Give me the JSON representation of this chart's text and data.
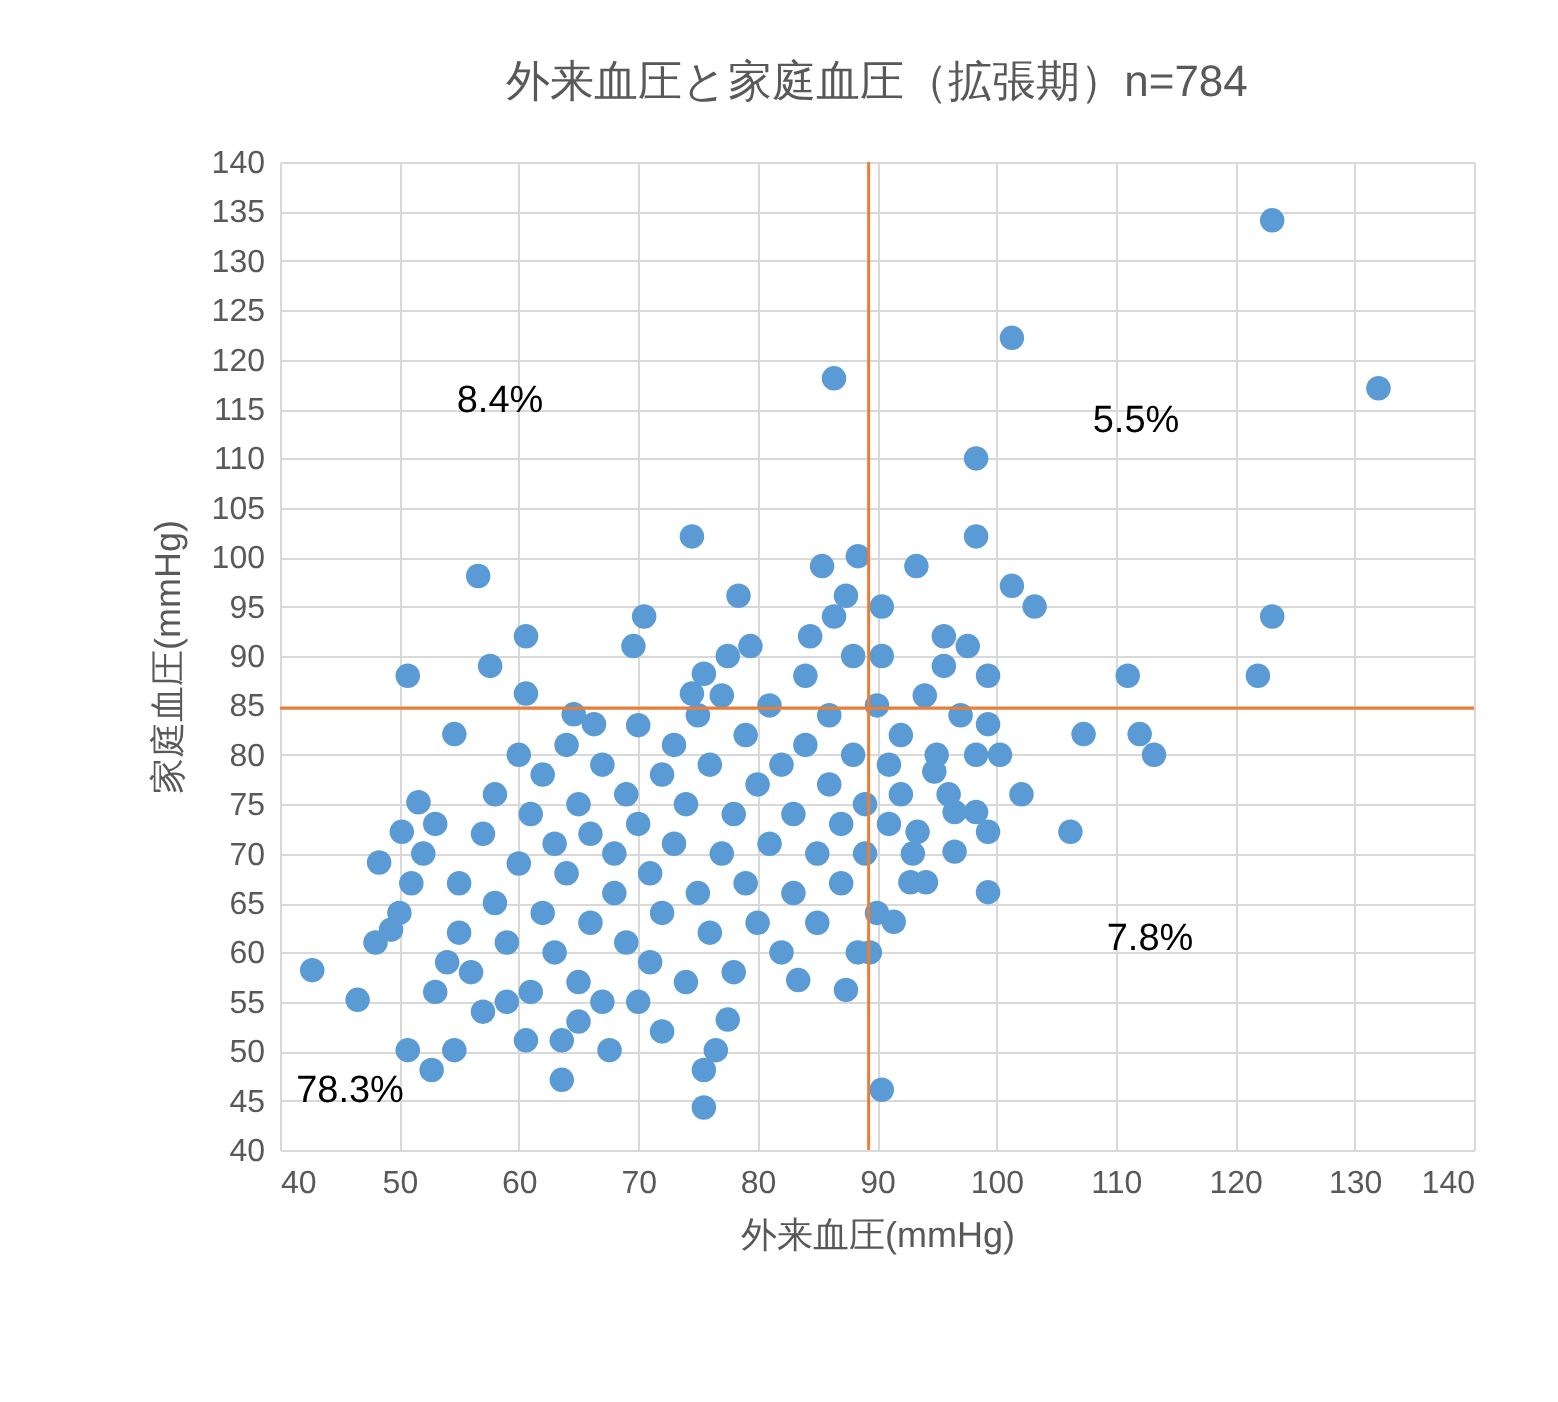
{
  "chart_data": {
    "type": "scatter",
    "title": "外来血圧と家庭血圧（拡張期）n=784",
    "xlabel": "外来血圧(mmHg)",
    "ylabel": "家庭血圧(mmHg)",
    "x": [
      123.1,
      132,
      101.3,
      86.4,
      98.3,
      98.3,
      74.5,
      85.4,
      88.4,
      93.3,
      101.3,
      103.2,
      123.1,
      56.6,
      70.5,
      78.4,
      69.6,
      57.6,
      50.7,
      111,
      121.9,
      112,
      113.2,
      107.3,
      106.2,
      99.3,
      102.1,
      99.3,
      60.6,
      42.7,
      46.5,
      49.3,
      48.3,
      50.7,
      52.7,
      54.6,
      63.6,
      60.6,
      67.6,
      76.5,
      75.5,
      75.5,
      90.4,
      77.5,
      63.6,
      87.4,
      83.4,
      88.4,
      89.4,
      91.4,
      92.8,
      94.1,
      54.6,
      51.6,
      50.2,
      60.6,
      64.6,
      66.3,
      74.5,
      75.5,
      77.5,
      79.4,
      84.4,
      86.4,
      87.4,
      90.4,
      90.4,
      95.6,
      97.6,
      95.6,
      99.3,
      99.3,
      98.3,
      100.3,
      98.3,
      94.8,
      96.5,
      93.4,
      96.5,
      52,
      53,
      55,
      55,
      56,
      57,
      58,
      58,
      59,
      60,
      60,
      61,
      61,
      62,
      62,
      63,
      63,
      64,
      64,
      65,
      65,
      66,
      66,
      67,
      67,
      68,
      68,
      69,
      69,
      70,
      70,
      71,
      71,
      72,
      72,
      73,
      73,
      74,
      74,
      75,
      75,
      76,
      76,
      77,
      77,
      78,
      78,
      79,
      79,
      80,
      80,
      81,
      81,
      82,
      82,
      83,
      83,
      84,
      84,
      85,
      85,
      86,
      86,
      87,
      87,
      88,
      88,
      89,
      89,
      90,
      90,
      91,
      91,
      92,
      92,
      93,
      94,
      95,
      96,
      97,
      48,
      50,
      51,
      53,
      54,
      57,
      59,
      65,
      70,
      72
    ],
    "series": [
      {
        "color": "#5b9bd5",
        "values": [
          134.1,
          117.1,
          122.2,
          118.1,
          110,
          102.1,
          102.1,
          99.1,
          100.1,
          99.1,
          97.1,
          95,
          94,
          98.1,
          94,
          96.1,
          91,
          89,
          88,
          88,
          88,
          82.1,
          80,
          82.1,
          72.2,
          72.2,
          76,
          66.1,
          92,
          58.2,
          55.2,
          62.3,
          69.1,
          50.1,
          48.1,
          50.1,
          51.1,
          51.1,
          50.1,
          50.1,
          48.1,
          44.3,
          46.1,
          53.2,
          47.1,
          56.2,
          57.2,
          60,
          60,
          63.1,
          67.1,
          67.1,
          82.1,
          75.2,
          72.2,
          86.2,
          84.1,
          83.1,
          86.2,
          88.2,
          90,
          91,
          92,
          94,
          96.1,
          95,
          90,
          92,
          91,
          89,
          88,
          83.1,
          80,
          80,
          74.2,
          78.3,
          74.2,
          72.2,
          70.2,
          70,
          73,
          67,
          62,
          58,
          72,
          65,
          76,
          61,
          69,
          80,
          74,
          56,
          64,
          78,
          71,
          60,
          68,
          81,
          75,
          57,
          63,
          72,
          79,
          55,
          66,
          70,
          61,
          76,
          83,
          73,
          59,
          68,
          78,
          64,
          81,
          71,
          57,
          75,
          66,
          84,
          62,
          79,
          70,
          86,
          74,
          58,
          82,
          67,
          77,
          63,
          85,
          71,
          60,
          79,
          74,
          66,
          88,
          81,
          70,
          63,
          77,
          84,
          73,
          67,
          90,
          80,
          75,
          70,
          85,
          64,
          79,
          73,
          82,
          76,
          70,
          86,
          80,
          76,
          84,
          61,
          64,
          67,
          56,
          59,
          54,
          55,
          53,
          55,
          52
        ]
      }
    ],
    "xlim": [
      40,
      140
    ],
    "xticks": [
      40,
      50,
      60,
      70,
      80,
      90,
      100,
      110,
      120,
      130,
      140
    ],
    "ylim": [
      40,
      140
    ],
    "yticks": [
      40,
      45,
      50,
      55,
      60,
      65,
      70,
      75,
      80,
      85,
      90,
      95,
      100,
      105,
      110,
      115,
      120,
      125,
      130,
      135,
      140
    ],
    "grid": true,
    "marker": "circle",
    "ref_lines": [
      {
        "axis": "x",
        "value": 89.3,
        "color": "#ed7d31"
      },
      {
        "axis": "y",
        "value": 84.7,
        "color": "#ed7d31"
      }
    ],
    "annotations": [
      "8.4%",
      "5.5%",
      "7.8%",
      "78.3%"
    ]
  }
}
